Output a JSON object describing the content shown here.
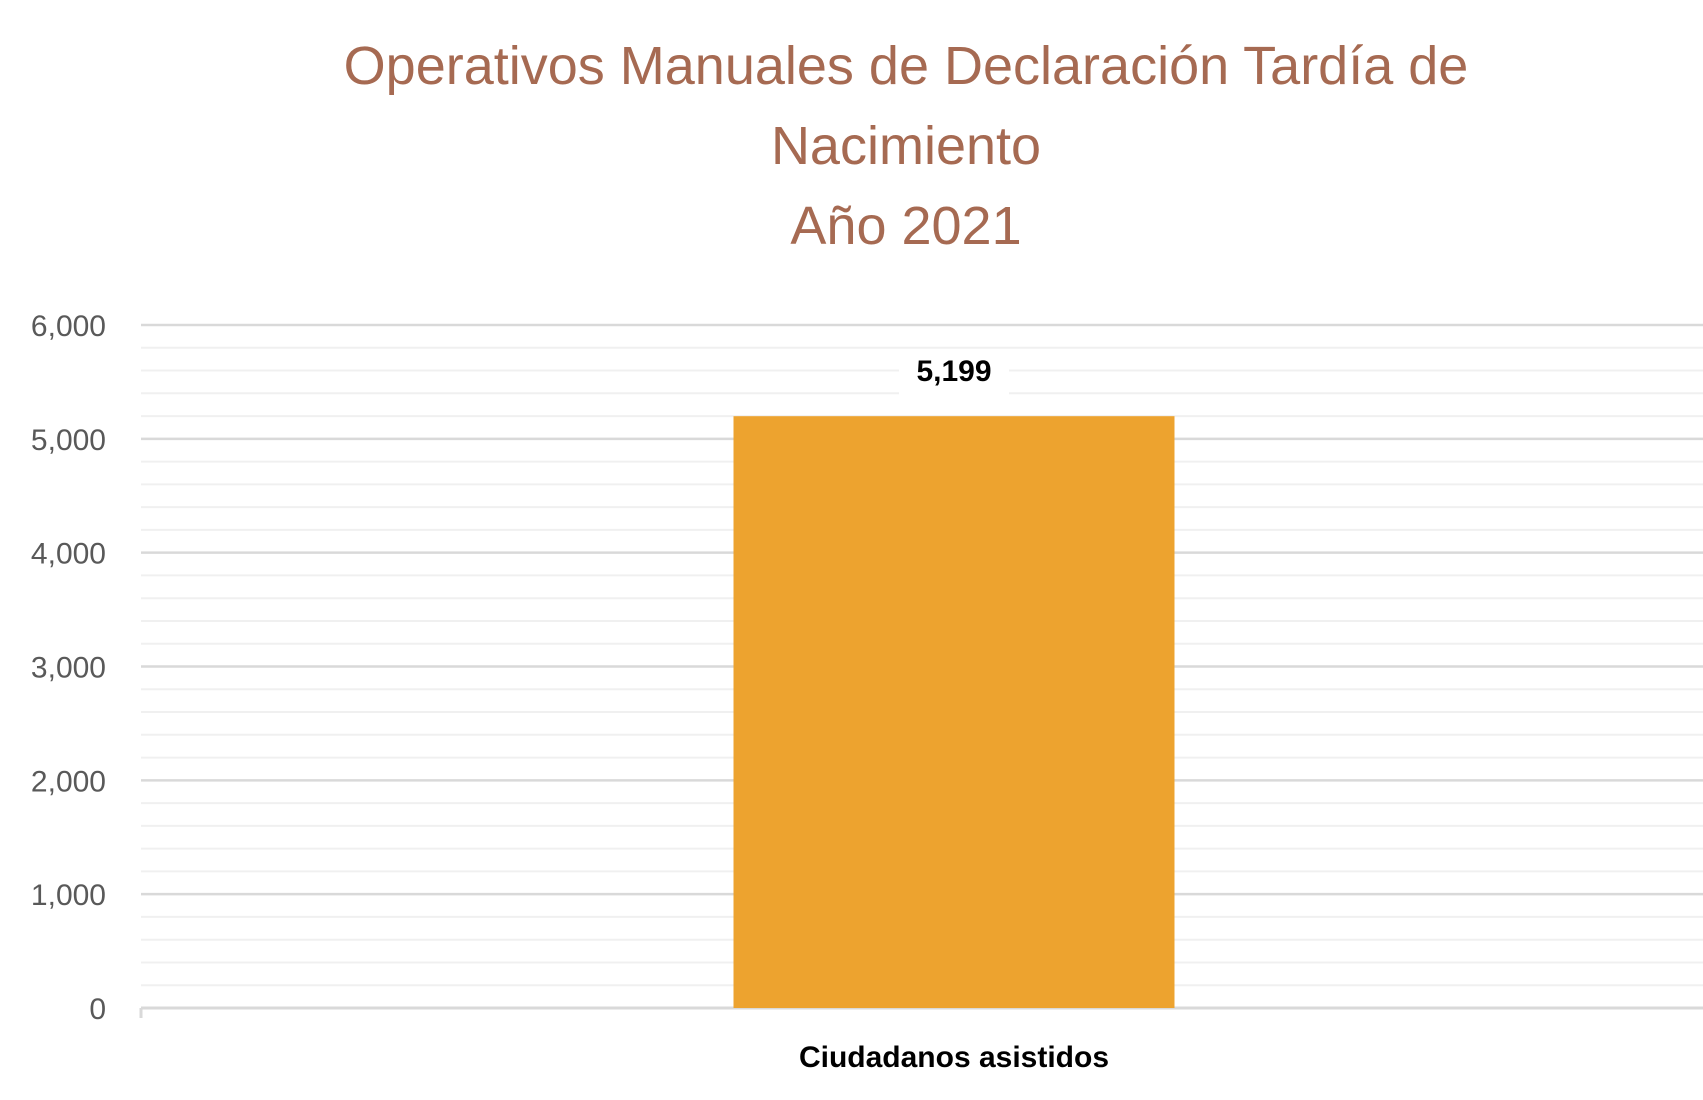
{
  "chart_data": {
    "type": "bar",
    "title": [
      "Operativos Manuales de Declaración Tardía de",
      "Nacimiento",
      "Año 2021"
    ],
    "categories": [
      "Ciudadanos asistidos"
    ],
    "values": [
      5199
    ],
    "data_labels": [
      "5,199"
    ],
    "ylim": [
      0,
      6000
    ],
    "y_ticks": [
      0,
      1000,
      2000,
      3000,
      4000,
      5000,
      6000
    ],
    "y_tick_labels": [
      "0",
      "1,000",
      "2,000",
      "3,000",
      "4,000",
      "5,000",
      "6,000"
    ],
    "grid": true,
    "minor_grid": true,
    "legend": "none",
    "colors": {
      "bar": "#EDA32F",
      "title": "#A66A52",
      "major_grid": "#D9D9D9",
      "minor_grid": "#F0F0F0",
      "axis": "#D9D9D9"
    }
  }
}
